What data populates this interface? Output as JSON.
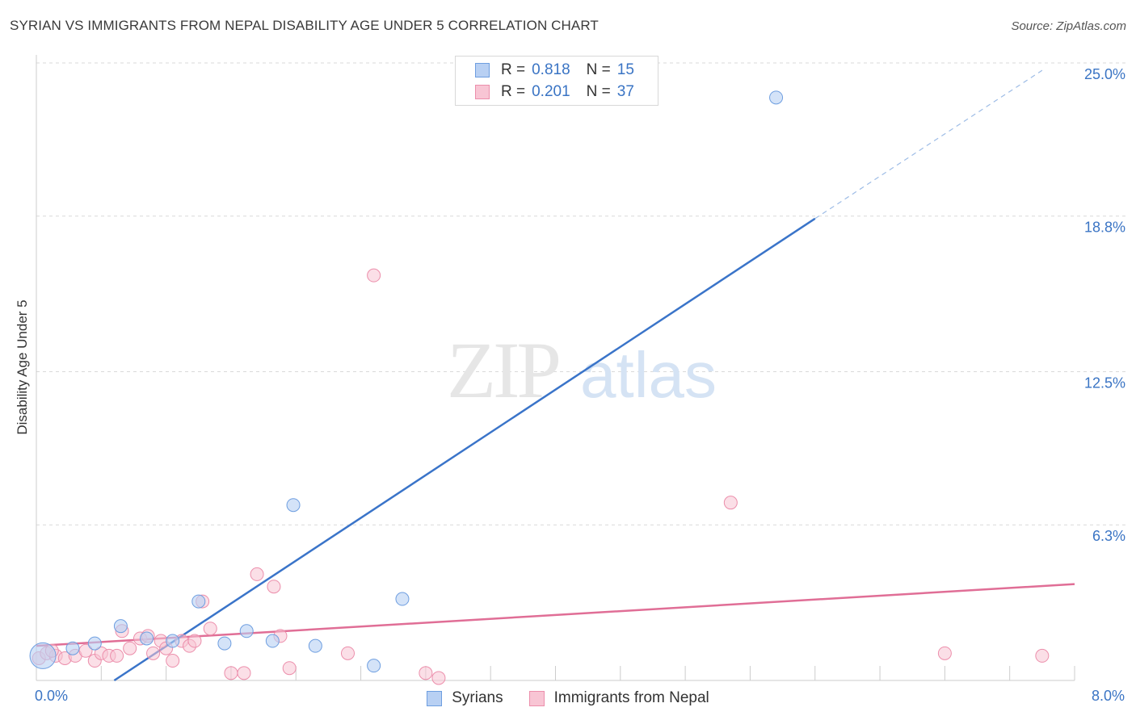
{
  "title": "SYRIAN VS IMMIGRANTS FROM NEPAL DISABILITY AGE UNDER 5 CORRELATION CHART",
  "source": "Source: ZipAtlas.com",
  "watermark": {
    "zip": "ZIP",
    "atlas": "atlas"
  },
  "legend": {
    "r_label": "R =",
    "n_label": "N =",
    "rows": [
      {
        "r": "0.818",
        "n": "15"
      },
      {
        "r": "0.201",
        "n": "37"
      }
    ]
  },
  "colors": {
    "syrians_fill": "#b8d0f3",
    "syrians_stroke": "#6e9ee0",
    "syrians_line": "#3a74c9",
    "nepal_fill": "#f8c5d4",
    "nepal_stroke": "#ec8eab",
    "nepal_line": "#e06e96",
    "axis_text": "#3a74c4"
  },
  "chart_data": {
    "type": "scatter",
    "title": "SYRIAN VS IMMIGRANTS FROM NEPAL DISABILITY AGE UNDER 5 CORRELATION CHART",
    "xlabel": "",
    "ylabel": "Disability Age Under 5",
    "xlim": [
      0,
      8
    ],
    "ylim": [
      0,
      25
    ],
    "x_tick_labels": [
      "0.0%",
      "8.0%"
    ],
    "y_ticks": [
      6.3,
      12.5,
      18.8,
      25.0
    ],
    "y_tick_labels": [
      "6.3%",
      "12.5%",
      "18.8%",
      "25.0%"
    ],
    "grid": true,
    "legend_position": "top-center",
    "series": [
      {
        "name": "Syrians",
        "r": 0.818,
        "n": 15,
        "points": [
          {
            "x": 0.05,
            "y": 1.0
          },
          {
            "x": 0.28,
            "y": 1.3
          },
          {
            "x": 0.45,
            "y": 1.5
          },
          {
            "x": 0.65,
            "y": 2.2
          },
          {
            "x": 0.85,
            "y": 1.7
          },
          {
            "x": 1.05,
            "y": 1.6
          },
          {
            "x": 1.25,
            "y": 3.2
          },
          {
            "x": 1.45,
            "y": 1.5
          },
          {
            "x": 1.62,
            "y": 2.0
          },
          {
            "x": 1.82,
            "y": 1.6
          },
          {
            "x": 1.98,
            "y": 7.1
          },
          {
            "x": 2.15,
            "y": 1.4
          },
          {
            "x": 2.6,
            "y": 0.6
          },
          {
            "x": 2.82,
            "y": 3.3
          },
          {
            "x": 5.7,
            "y": 23.6
          }
        ],
        "trendline": {
          "x": [
            0.6,
            6.0
          ],
          "y": [
            0.0,
            18.7
          ]
        },
        "trendline_dashed": {
          "x": [
            6.0,
            7.75
          ],
          "y": [
            18.7,
            24.7
          ]
        }
      },
      {
        "name": "Immigrants from Nepal",
        "r": 0.201,
        "n": 37,
        "points": [
          {
            "x": 0.02,
            "y": 0.9
          },
          {
            "x": 0.08,
            "y": 1.1
          },
          {
            "x": 0.15,
            "y": 1.0
          },
          {
            "x": 0.22,
            "y": 0.9
          },
          {
            "x": 0.3,
            "y": 1.0
          },
          {
            "x": 0.38,
            "y": 1.2
          },
          {
            "x": 0.45,
            "y": 0.8
          },
          {
            "x": 0.5,
            "y": 1.1
          },
          {
            "x": 0.56,
            "y": 1.0
          },
          {
            "x": 0.62,
            "y": 1.0
          },
          {
            "x": 0.66,
            "y": 2.0
          },
          {
            "x": 0.72,
            "y": 1.3
          },
          {
            "x": 0.8,
            "y": 1.7
          },
          {
            "x": 0.86,
            "y": 1.8
          },
          {
            "x": 0.9,
            "y": 1.1
          },
          {
            "x": 0.96,
            "y": 1.6
          },
          {
            "x": 1.0,
            "y": 1.3
          },
          {
            "x": 1.05,
            "y": 0.8
          },
          {
            "x": 1.12,
            "y": 1.6
          },
          {
            "x": 1.18,
            "y": 1.4
          },
          {
            "x": 1.22,
            "y": 1.6
          },
          {
            "x": 1.28,
            "y": 3.2
          },
          {
            "x": 1.34,
            "y": 2.1
          },
          {
            "x": 1.5,
            "y": 0.3
          },
          {
            "x": 1.6,
            "y": 0.3
          },
          {
            "x": 1.7,
            "y": 4.3
          },
          {
            "x": 1.83,
            "y": 3.8
          },
          {
            "x": 1.88,
            "y": 1.8
          },
          {
            "x": 1.95,
            "y": 0.5
          },
          {
            "x": 2.4,
            "y": 1.1
          },
          {
            "x": 2.6,
            "y": 16.4
          },
          {
            "x": 3.0,
            "y": 0.3
          },
          {
            "x": 3.1,
            "y": 0.1
          },
          {
            "x": 5.35,
            "y": 7.2
          },
          {
            "x": 7.0,
            "y": 1.1
          },
          {
            "x": 7.75,
            "y": 1.0
          },
          {
            "x": 0.12,
            "y": 1.2
          }
        ],
        "trendline": {
          "x": [
            0.0,
            8.0
          ],
          "y": [
            1.4,
            3.9
          ]
        }
      }
    ]
  },
  "bottom_legend": {
    "items": [
      {
        "label": "Syrians"
      },
      {
        "label": "Immigrants from Nepal"
      }
    ]
  }
}
